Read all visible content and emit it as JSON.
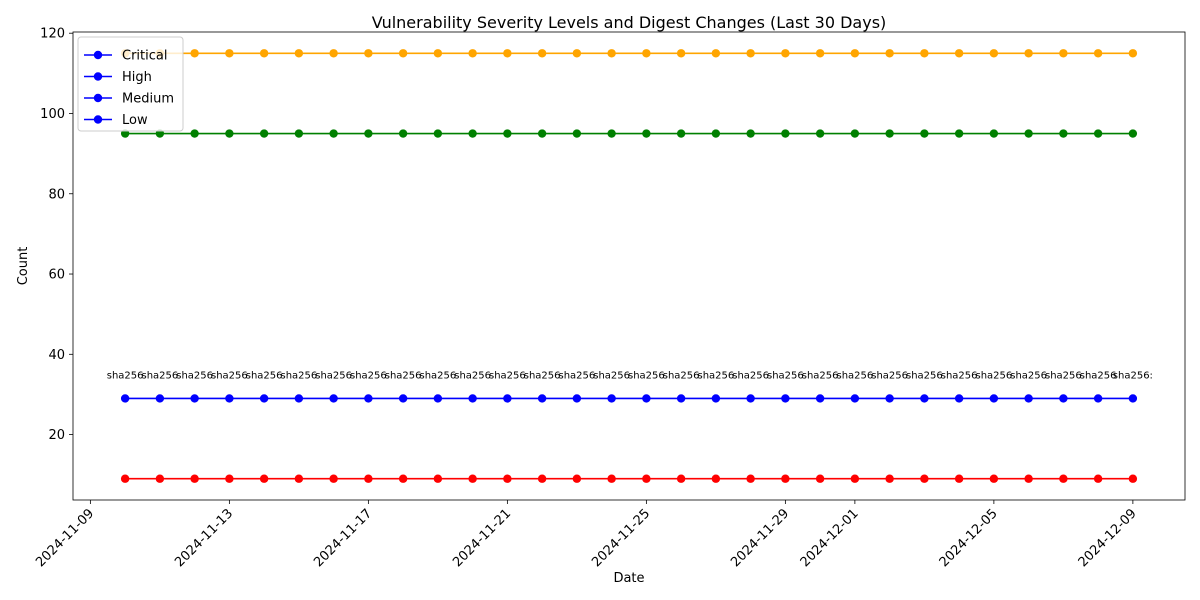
{
  "chart_data": {
    "type": "line",
    "title": "Vulnerability Severity Levels and Digest Changes (Last 30 Days)",
    "xlabel": "Date",
    "ylabel": "Count",
    "ylim": [
      3.7,
      120.3
    ],
    "yticks": [
      20,
      40,
      60,
      80,
      100,
      120
    ],
    "x_start": "2024-11-10",
    "x_end": "2024-12-09",
    "xlim": [
      "2024-11-08T12:00",
      "2024-12-10T12:00"
    ],
    "xticks": [
      "2024-11-09",
      "2024-11-13",
      "2024-11-17",
      "2024-11-21",
      "2024-11-25",
      "2024-11-29",
      "2024-12-01",
      "2024-12-05",
      "2024-12-09"
    ],
    "series": [
      {
        "name": "Critical",
        "value": 9,
        "color": "#ff0000",
        "legend_color": "#0000ff"
      },
      {
        "name": "High",
        "value": 29,
        "color": "#0000ff",
        "legend_color": "#0000ff"
      },
      {
        "name": "Medium",
        "value": 95,
        "color": "#008000",
        "legend_color": "#0000ff"
      },
      {
        "name": "Low",
        "value": 115,
        "color": "#ffa500",
        "legend_color": "#0000ff"
      }
    ],
    "annotations": {
      "text": "sha256",
      "last_text": "sha256:",
      "attached_to": "High",
      "y_value": 35
    },
    "legend_position": "top-left",
    "grid": false
  }
}
